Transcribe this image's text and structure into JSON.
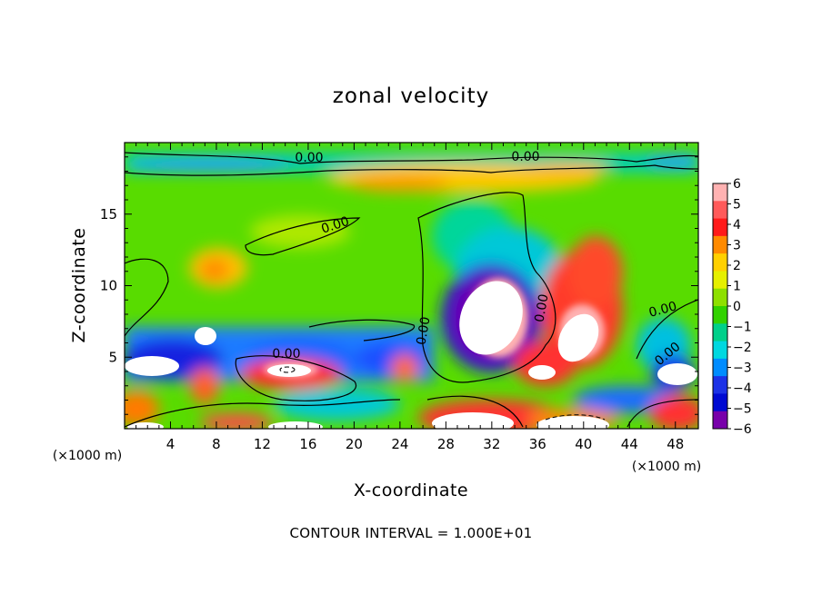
{
  "chart_data": {
    "type": "heatmap",
    "title": "zonal velocity",
    "xlabel": "X-coordinate",
    "ylabel": "Z-coordinate",
    "x_unit_label": "(×1000 m)",
    "x_ticks": [
      "4",
      "8",
      "12",
      "16",
      "20",
      "24",
      "28",
      "32",
      "36",
      "40",
      "44",
      "48"
    ],
    "y_ticks": [
      "5",
      "10",
      "15"
    ],
    "xlim": [
      0,
      50
    ],
    "ylim": [
      0,
      20
    ],
    "colorbar": {
      "ticks": [
        "6",
        "5",
        "4",
        "3",
        "2",
        "1",
        "0",
        "−1",
        "−2",
        "−3",
        "−4",
        "−5",
        "−6"
      ],
      "range": [
        -6,
        6
      ],
      "colors": [
        "#ffb2b2",
        "#ff5a5a",
        "#ff1a1a",
        "#ff8a00",
        "#ffd000",
        "#e6f000",
        "#8ee000",
        "#32d200",
        "#00d08a",
        "#00d8e0",
        "#008cff",
        "#1c32e6",
        "#000ad2",
        "#7800aa"
      ]
    },
    "contour_labels": [
      "0.00",
      "0.00",
      "0.00",
      "0.00",
      "0.00",
      "0.00",
      "0.00",
      "0.00"
    ],
    "contour_interval_text": "CONTOUR INTERVAL = 1.000E+01",
    "features": [
      {
        "kind": "negative-jet-core",
        "x": 31,
        "z": 7.5,
        "value": -6
      },
      {
        "kind": "positive-core",
        "x": 39.5,
        "z": 6.5,
        "value": 5
      },
      {
        "kind": "positive-band",
        "x": 24,
        "z": 17.2,
        "value": 3
      },
      {
        "kind": "positive-core",
        "x": 10,
        "z": 11,
        "value": 3
      },
      {
        "kind": "positive-core",
        "x": 13.5,
        "z": 4,
        "value": 5
      },
      {
        "kind": "negative-band",
        "x": 12,
        "z": 18.4,
        "value": -2
      }
    ]
  }
}
